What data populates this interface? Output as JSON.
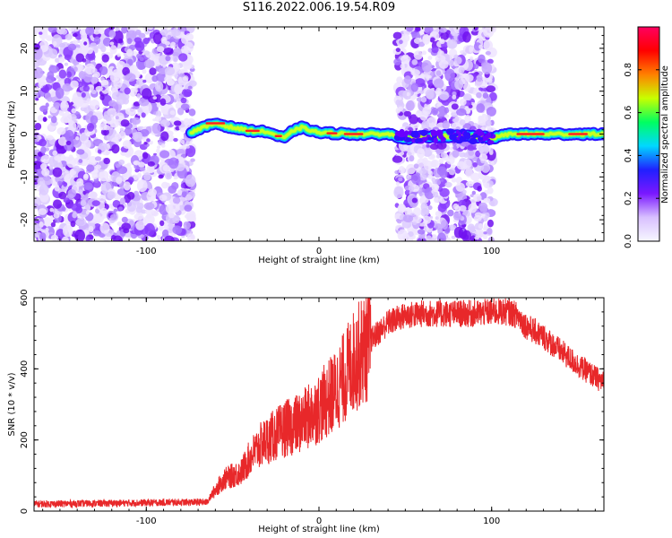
{
  "title": "S116.2022.006.19.54.R09",
  "colors": {
    "snr_line": "#e8282a",
    "speckle": "#8a2be2",
    "colorbar_stops": [
      "#f7f7ff",
      "#d8c0ff",
      "#7a18ff",
      "#2020ff",
      "#00d8ff",
      "#00ff60",
      "#c8ff00",
      "#ff8000",
      "#ff0000",
      "#ff0060"
    ]
  },
  "chart_data": [
    {
      "type": "heatmap",
      "name": "spectrogram",
      "title": "S116.2022.006.19.54.R09",
      "xlabel": "Height of straight line (km)",
      "ylabel": "Frequency (Hz)",
      "xlim": [
        -165,
        165
      ],
      "ylim": [
        -25,
        25
      ],
      "xticks": [
        -100,
        0,
        100
      ],
      "yticks": [
        -20,
        -10,
        0,
        10,
        20
      ],
      "colorbar": {
        "label": "Normalized spectral amplitude",
        "range": [
          0,
          1
        ],
        "ticks": [
          0.0,
          0.2,
          0.4,
          0.6,
          0.8
        ],
        "tick_labels": [
          "0.0",
          "0.2",
          "0.4",
          "0.6",
          "0.8"
        ]
      },
      "noise_regions_km": [
        [
          -165,
          -73
        ],
        [
          45,
          101
        ]
      ],
      "signal_track": {
        "x_km": [
          -74,
          -60,
          -50,
          -40,
          -30,
          -20,
          -15,
          -10,
          0,
          20,
          40,
          50,
          70,
          90,
          100,
          110,
          130,
          150,
          165
        ],
        "freq_hz": [
          0.5,
          2.5,
          1.5,
          0.8,
          0.5,
          -1.0,
          0.8,
          1.5,
          0.3,
          0,
          0,
          -1.0,
          -0.5,
          -0.5,
          -1.0,
          0,
          0,
          0,
          0
        ]
      }
    },
    {
      "type": "line",
      "name": "snr",
      "xlabel": "Height of straight line (km)",
      "ylabel": "SNR (10 * v/v)",
      "xlim": [
        -165,
        165
      ],
      "ylim": [
        0,
        600
      ],
      "xticks": [
        -100,
        0,
        100
      ],
      "yticks": [
        0,
        200,
        400,
        600
      ],
      "x": [
        -165,
        -120,
        -80,
        -65,
        -60,
        -55,
        -50,
        -45,
        -40,
        -35,
        -30,
        -20,
        -10,
        0,
        10,
        20,
        30,
        40,
        50,
        60,
        70,
        80,
        90,
        100,
        110,
        115,
        120,
        130,
        140,
        150,
        165
      ],
      "y": [
        20,
        22,
        25,
        25,
        60,
        90,
        100,
        110,
        150,
        180,
        200,
        230,
        250,
        290,
        340,
        420,
        480,
        530,
        550,
        555,
        555,
        555,
        555,
        560,
        560,
        550,
        520,
        490,
        450,
        410,
        360
      ]
    }
  ]
}
